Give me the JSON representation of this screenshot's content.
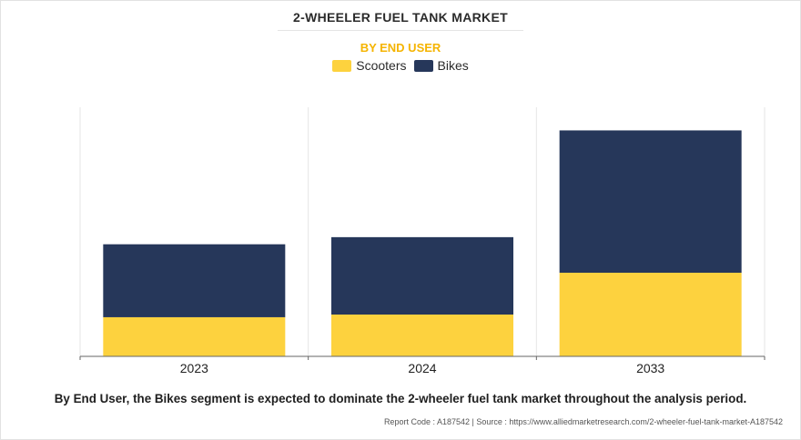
{
  "title": "2-WHEELER FUEL TANK MARKET",
  "subtitle": "BY END USER",
  "caption": "By End User, the Bikes segment is expected to dominate the 2-wheeler fuel tank market throughout the analysis period.",
  "source": "Report Code : A187542  |  Source : https://www.alliedmarketresearch.com/2-wheeler-fuel-tank-market-A187542",
  "colors": {
    "scooters": "#FDD23E",
    "bikes": "#26375A",
    "subtitle": "#F5B400",
    "grid": "#E6E6E6",
    "axis": "#666666"
  },
  "chart_data": {
    "type": "bar",
    "stacked": true,
    "categories": [
      "2023",
      "2024",
      "2033"
    ],
    "series": [
      {
        "name": "Scooters",
        "values": [
          44,
          47,
          94
        ]
      },
      {
        "name": "Bikes",
        "values": [
          82,
          87,
          160
        ]
      }
    ],
    "ylim": [
      0,
      280
    ],
    "legend": "top-center",
    "grid": "vertical"
  }
}
